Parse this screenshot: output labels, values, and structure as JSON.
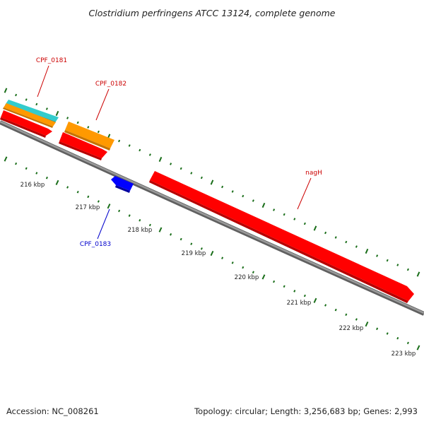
{
  "title": "Clostridium perfringens ATCC 13124, complete genome",
  "footer": {
    "accession": "Accession: NC_008261",
    "summary": "Topology: circular; Length: 3,256,683 bp; Genes: 2,993"
  },
  "tick_labels": [
    "216 kbp",
    "217 kbp",
    "218 kbp",
    "219 kbp",
    "220 kbp",
    "221 kbp",
    "222 kbp",
    "223 kbp"
  ],
  "gene_labels": [
    {
      "name": "CPF_0181",
      "color": "#cc0000"
    },
    {
      "name": "CPF_0182",
      "color": "#cc0000"
    },
    {
      "name": "CPF_0183",
      "color": "#0000cc"
    },
    {
      "name": "nagH",
      "color": "#cc0000"
    }
  ],
  "colors": {
    "backbone": "#808080",
    "forward_gene": "#ff0000",
    "reverse_gene": "#0000ff",
    "orange_feature": "#ff9900",
    "cyan_feature": "#33cccc",
    "tick": "#1a6e1a"
  }
}
